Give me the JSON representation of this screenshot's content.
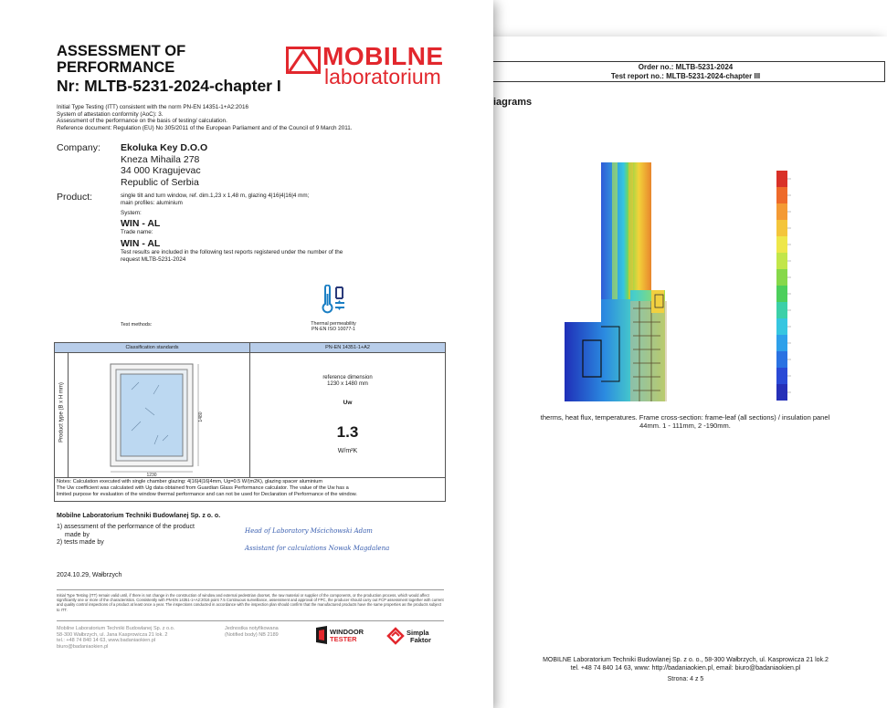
{
  "back": {
    "order_no": "Order no.: MLTB-5231-2024",
    "report_no": "Test report no.: MLTB-5231-2024-chapter III",
    "section": "Diagrams",
    "caption_line1": "therms, heat flux, temperatures. Frame cross-section: frame-leaf (all sections) / insulation panel",
    "caption_line2": "44mm. 1 - 111mm, 2 -190mm.",
    "footer_line1": "MOBILNE Laboratorium Techniki Budowlanej Sp. z o. o., 58-300 Wałbrzych, ul. Kasprowicza 21 lok.2",
    "footer_line2": "tel. +48 74 840 14 63, www: http://badaniaokien.pl, email: biuro@badaniaokien.pl",
    "page_indicator": "Strona: 4 z 5"
  },
  "front": {
    "title_line1": "ASSESSMENT OF",
    "title_line2": "PERFORMANCE",
    "title_nr": "Nr: MLTB-5231-2024-chapter I",
    "logo_top": "MOBILNE",
    "logo_bottom": "laboratorium",
    "intro": [
      "Initial Type Testing (ITT) consistent with the norm PN-EN 14351-1+A2:2016",
      "System of attestation conformity (AoC): 3.",
      "Assessment of the performance on the basis of testing/ calculation.",
      "Reference document: Regulation (EU) No 305/2011 of the European Parliament and of the Council of 9 March 2011."
    ],
    "company_label": "Company:",
    "company_name": "Ekoluka Key D.O.O",
    "company_address": [
      "Kneza Mihaila 278",
      "34 000 Kragujevac",
      "Republic of Serbia"
    ],
    "product_label": "Product:",
    "product_desc_1": "single tilt and turn window, ref. dim.1,23 x 1,48 m, glazing 4|16|4|16|4 mm;",
    "product_desc_2": "main profiles: aluminium",
    "system_label": "System:",
    "system_value": "WIN - AL",
    "trade_label": "Trade name:",
    "trade_value": "WIN - AL",
    "results_1": "Test results are included in the following test reports registered under the number of the",
    "results_2": "request MLTB-5231-2024",
    "test_methods_label": "Test methods:",
    "thermal_caption_1": "Thermal permeability",
    "thermal_caption_2": "PN-EN ISO 10077-1",
    "table": {
      "header_left": "Classification standards",
      "header_right": "PN-EN 14351-1+A2",
      "vertical_label": "Product type (B x H mm)",
      "width_dim": "1230",
      "height_dim": "1480",
      "ref_dim_1": "reference dimension",
      "ref_dim_2": "1230 x 1480 mm",
      "uw_label": "Uw",
      "uw_value": "1.3",
      "uw_unit": "W/m²K",
      "notes": [
        "Notes: Calculation executed with single chamber glazing: 4|16|4|16|4mm, Ug=0.5 W/(m2K), glazing spacer aluminium",
        "The Uw coefficient was calculated with Ug data obtained from Guardian Glass Performance calculator. The value of the Uw has a",
        "limited purpose for evaluation of the window thermal performance and can not be used for Declaration of Performance of the window."
      ]
    },
    "lab_name": "Mobilne Laboratorium Techniki Budowlanej Sp. z o. o.",
    "role_1": "1) assessment of the performance of the product",
    "role_1b": "made by",
    "role_2": "2) tests made by",
    "signature_1": "Head of Laboratory Mścichowski Adam",
    "signature_2": "Assistant for calculations Nowak Magdalena",
    "date_place": "2024.10.29, Wałbrzych",
    "disclaimer": "Initial Type Testing (ITT) remain valid until, if there is not change in the construction of window and external pedestrian doorset, the raw material or supplier of the components, or the production process, which would affect significantly one or more of the characteristics. Consistently with PN-EN 14351-1+A2:2016 point 7.5 Continuous surveillance, assessment and approval of FPC, the producer should carry out FCP assessment together with current and quality control inspections of a product at least once a year. The inspections conducted in accordance with the inspection plan should confirm that the manufactured products have the same properties as the products subject to ITT.",
    "footer_address": [
      "Mobilne Laboratorium Techniki Budowlanej Sp. z o.o.",
      "58-300 Wałbrzych, ul. Jana Kasprowicza 21 lok. 2",
      "tel.: +48 74 840 14 63, www.badaniaokien.pl",
      "biuro@badaniaokien.pl"
    ],
    "footer_notified": [
      "Jednostka notyfikowana",
      "(Notified body) NB 2189"
    ],
    "windoor_1": "WINDOOR",
    "windoor_2": "TESTER",
    "simpla_1": "Simpla",
    "simpla_2": "Faktor"
  },
  "colors": {
    "brand_red": "#e2272d",
    "table_header": "#b8cde9",
    "signature_blue": "#3a5fb0"
  }
}
